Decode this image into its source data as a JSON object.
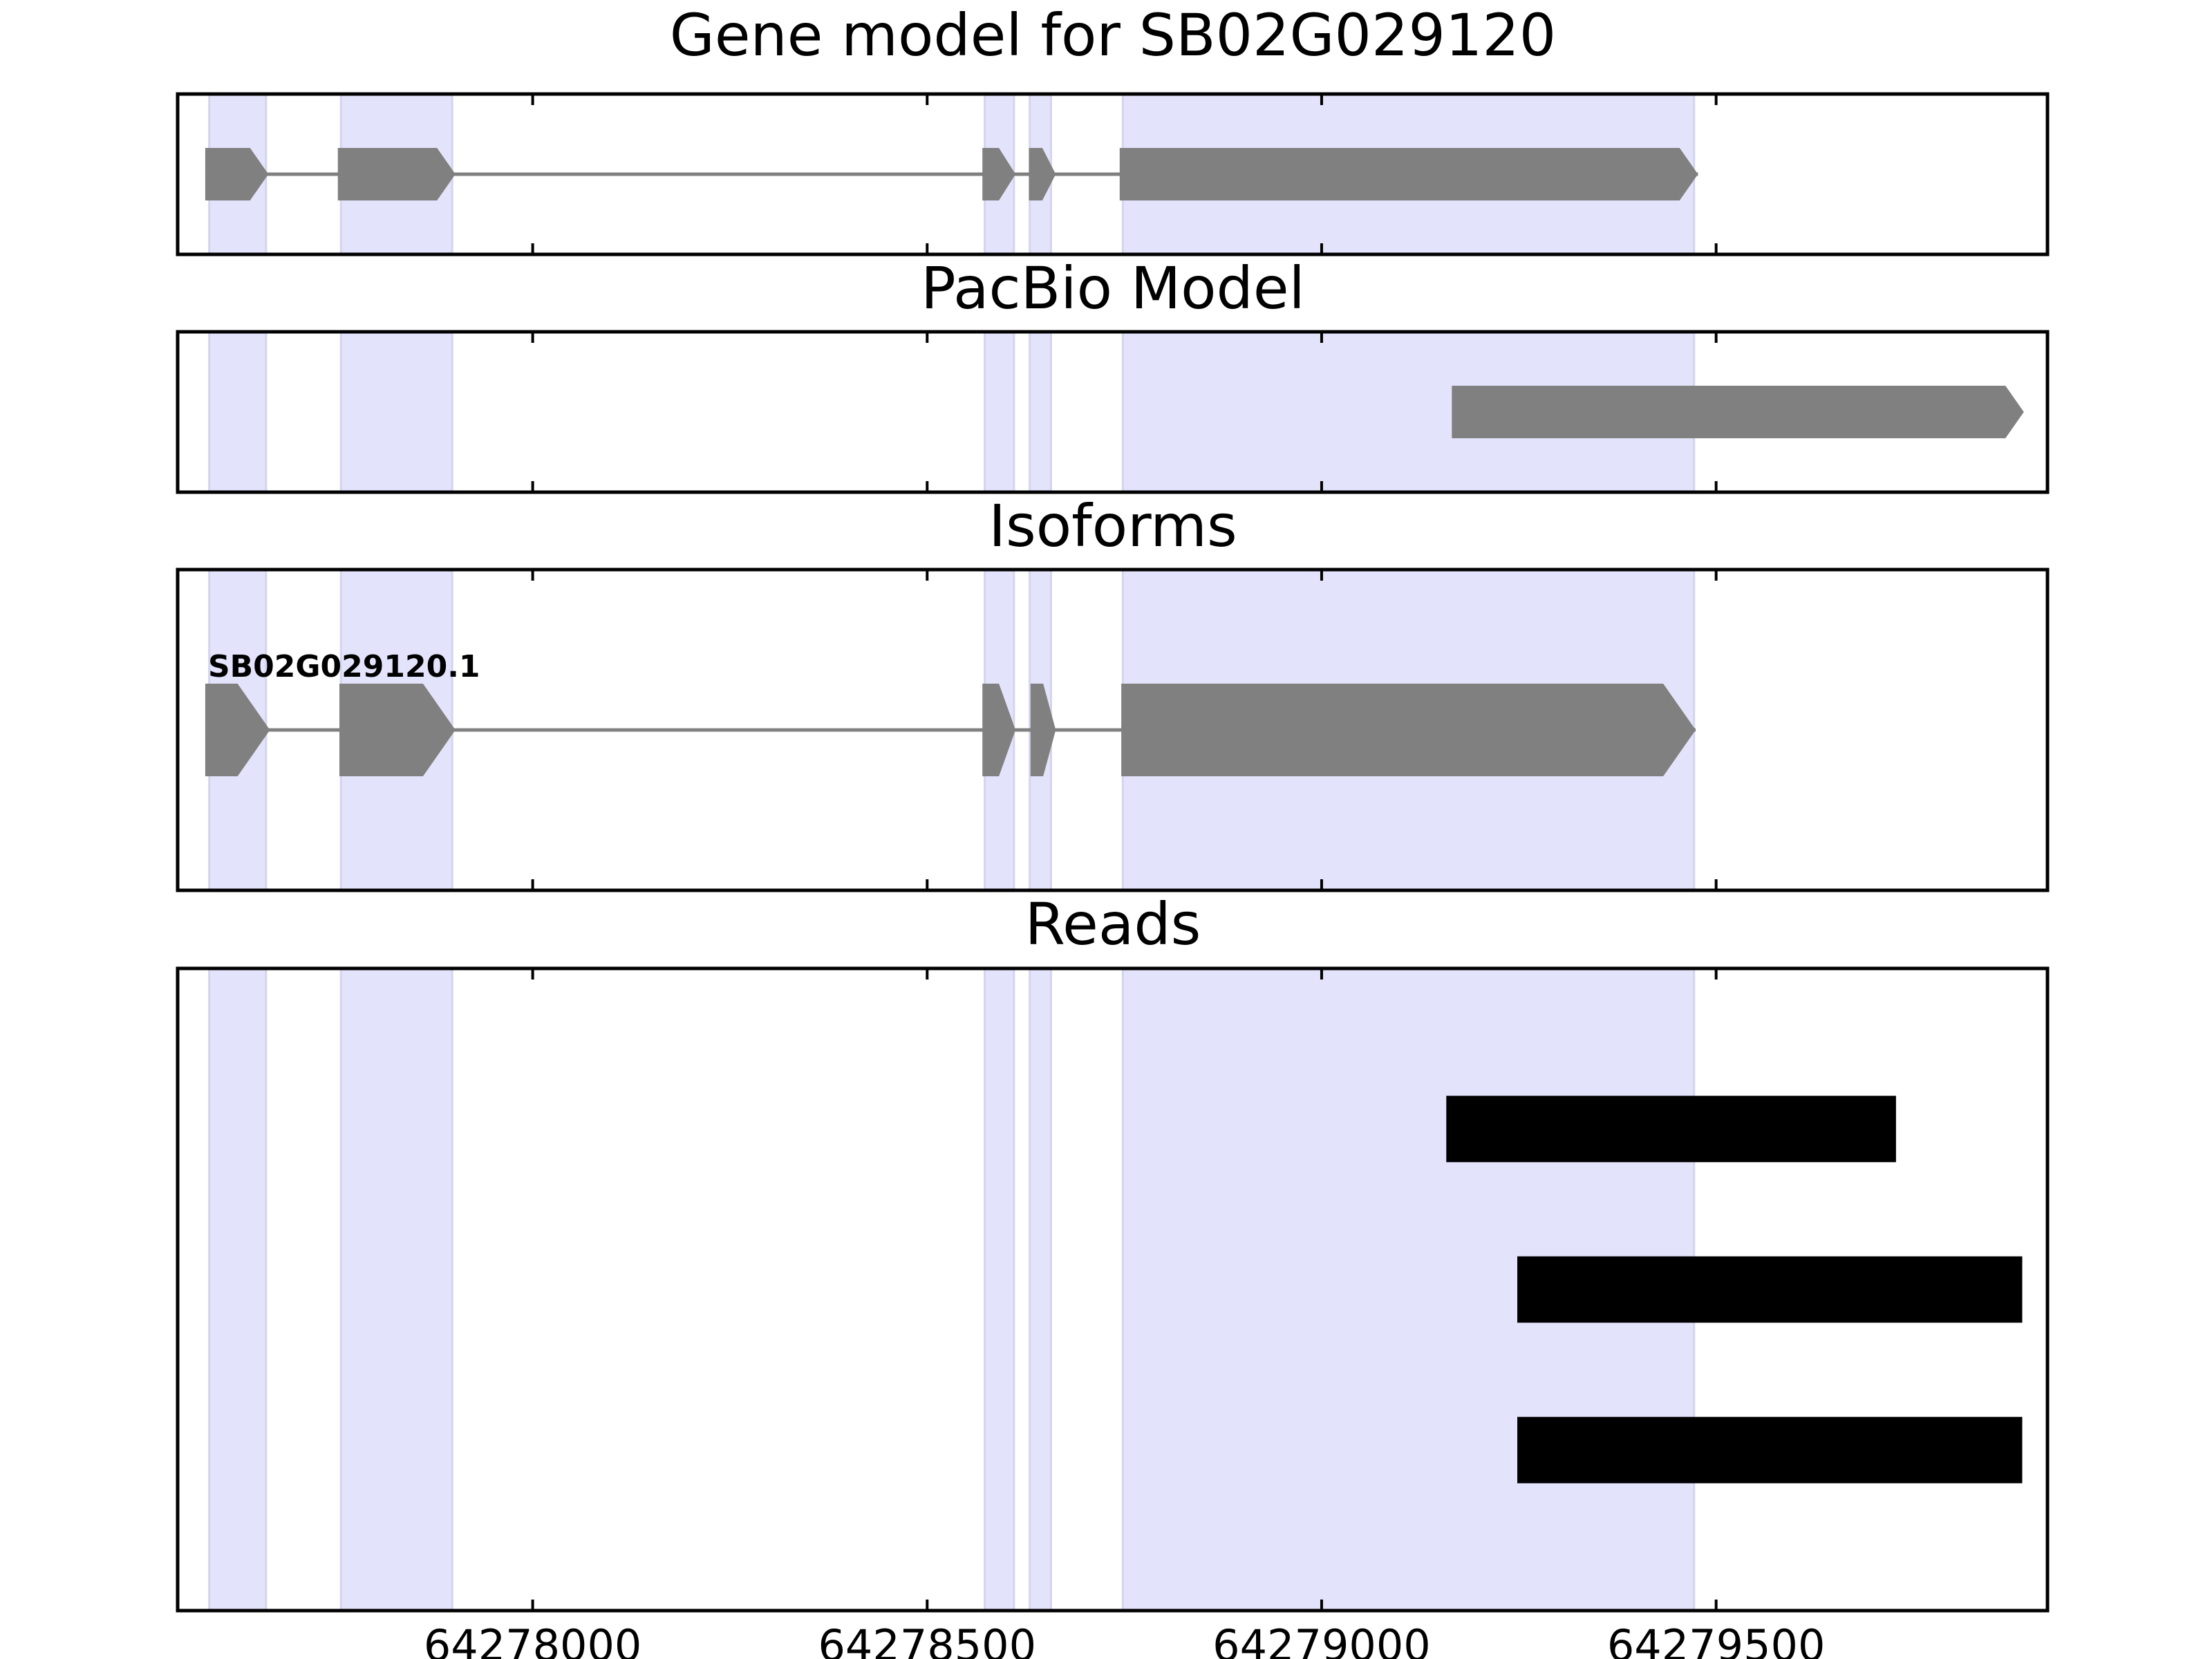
{
  "chart_data": {
    "type": "gene_model_tracks",
    "x_axis": {
      "xlim": [
        64277550,
        64279920
      ],
      "ticks": [
        64278000,
        64278500,
        64279000,
        64279500
      ],
      "tick_labels": [
        "64278000",
        "64278500",
        "64279000",
        "64279500"
      ]
    },
    "highlight_color": "#e3e3fc",
    "exon_color": "#808080",
    "read_color": "#000000",
    "highlight_regions": [
      [
        64277590,
        64277662
      ],
      [
        64277757,
        64277898
      ],
      [
        64278573,
        64278610
      ],
      [
        64278630,
        64278657
      ],
      [
        64278748,
        64279472
      ]
    ],
    "panels": [
      {
        "title": "Gene model for SB02G029120",
        "kind": "gene",
        "strand": "+",
        "exons": [
          [
            64277585,
            64277665
          ],
          [
            64277753,
            64277902
          ],
          [
            64278570,
            64278612
          ],
          [
            64278629,
            64278663
          ],
          [
            64278744,
            64279477
          ]
        ]
      },
      {
        "title": "PacBio Model",
        "kind": "gene",
        "strand": "+",
        "exons": [
          [
            64279165,
            64279890
          ]
        ]
      },
      {
        "title": "Isoforms",
        "kind": "isoform",
        "strand": "+",
        "isoform_label": "SB02G029120.1",
        "exons": [
          [
            64277585,
            64277667
          ],
          [
            64277755,
            64277902
          ],
          [
            64278570,
            64278612
          ],
          [
            64278631,
            64278663
          ],
          [
            64278746,
            64279474
          ]
        ]
      },
      {
        "title": "Reads",
        "kind": "reads",
        "reads": [
          [
            64279158,
            64279728
          ],
          [
            64279248,
            64279888
          ],
          [
            64279248,
            64279888
          ]
        ]
      }
    ]
  }
}
